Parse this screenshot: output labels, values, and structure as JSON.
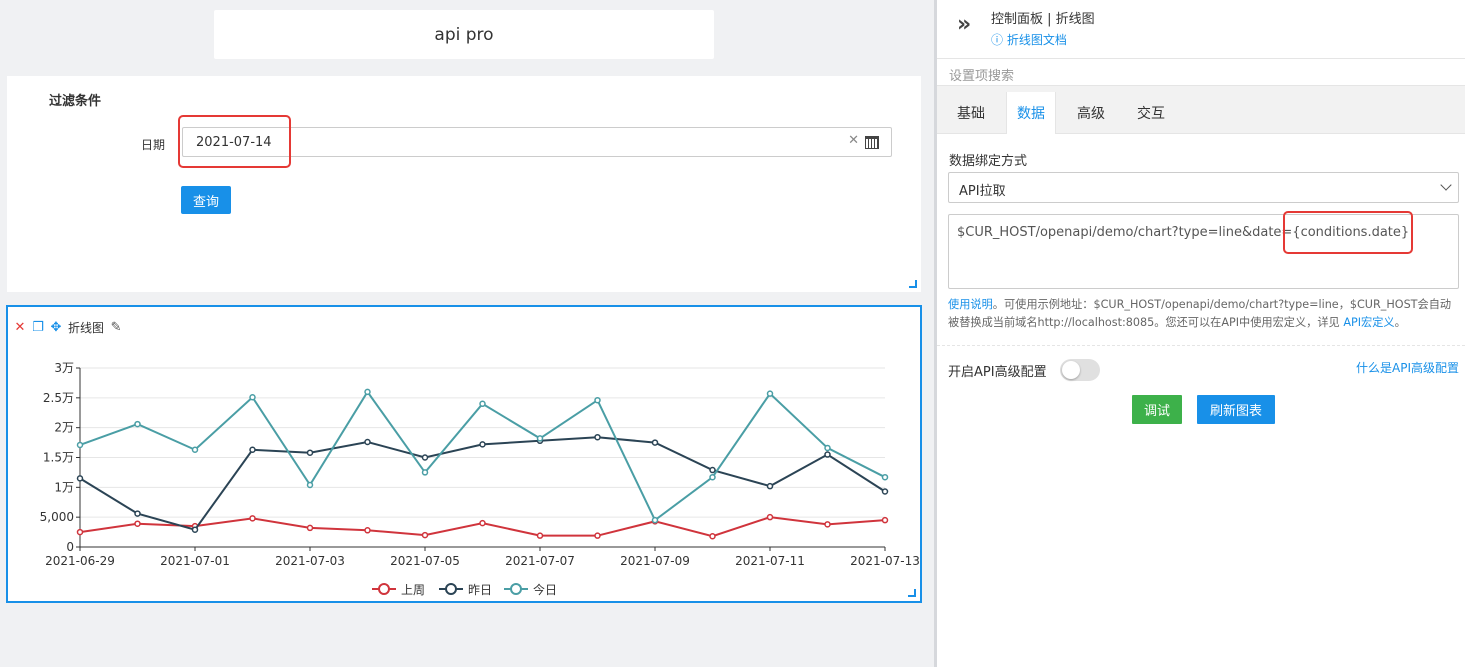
{
  "canvas": {
    "title": "api pro",
    "filter": {
      "title": "过滤条件",
      "date_label": "日期",
      "date_value": "2021-07-14",
      "query_label": "查询"
    },
    "chart_panel": {
      "name": "折线图"
    }
  },
  "chart_data": {
    "type": "line",
    "x": [
      "2021-06-29",
      "2021-06-30",
      "2021-07-01",
      "2021-07-02",
      "2021-07-03",
      "2021-07-04",
      "2021-07-05",
      "2021-07-06",
      "2021-07-07",
      "2021-07-08",
      "2021-07-09",
      "2021-07-10",
      "2021-07-11",
      "2021-07-12",
      "2021-07-13"
    ],
    "x_tick_labels": [
      "2021-06-29",
      "2021-07-01",
      "2021-07-03",
      "2021-07-05",
      "2021-07-07",
      "2021-07-09",
      "2021-07-11",
      "2021-07-13"
    ],
    "y_tick_labels": [
      "0",
      "5,000",
      "1万",
      "1.5万",
      "2万",
      "2.5万",
      "3万"
    ],
    "ylim": [
      0,
      30000
    ],
    "grid": true,
    "legend_position": "bottom",
    "series": [
      {
        "name": "上周",
        "color": "#d0343c",
        "values": [
          2500,
          3900,
          3500,
          4800,
          3200,
          2800,
          2000,
          4000,
          1900,
          1900,
          4300,
          1800,
          5000,
          3800,
          4500
        ]
      },
      {
        "name": "昨日",
        "color": "#2b4455",
        "values": [
          11500,
          5600,
          2900,
          16300,
          15800,
          17600,
          15000,
          17200,
          17800,
          18400,
          17500,
          12900,
          10200,
          15500,
          9300
        ]
      },
      {
        "name": "今日",
        "color": "#4a9ea5",
        "values": [
          17100,
          20600,
          16300,
          25100,
          10400,
          26000,
          12500,
          24000,
          18200,
          24600,
          4500,
          11700,
          25700,
          16600,
          11700
        ]
      }
    ]
  },
  "side": {
    "title": "控制面板 | 折线图",
    "doc_link": "折线图文档",
    "search_placeholder": "设置项搜索",
    "tabs": [
      "基础",
      "数据",
      "高级",
      "交互"
    ],
    "bind_label": "数据绑定方式",
    "bind_value": "API拉取",
    "url_value": "$CUR_HOST/openapi/demo/chart?type=line&date={conditions.date}",
    "help_link": "使用说明",
    "help_text": "。可使用示例地址：$CUR_HOST/openapi/demo/chart?type=line，$CUR_HOST会自动被替换成当前域名http://localhost:8085。您还可以在API中使用宏定义，详见 ",
    "macro_link": "API宏定义",
    "help_end": "。",
    "adv_label": "开启API高级配置",
    "adv_link": "什么是API高级配置",
    "debug_label": "调试",
    "refresh_label": "刷新图表"
  }
}
